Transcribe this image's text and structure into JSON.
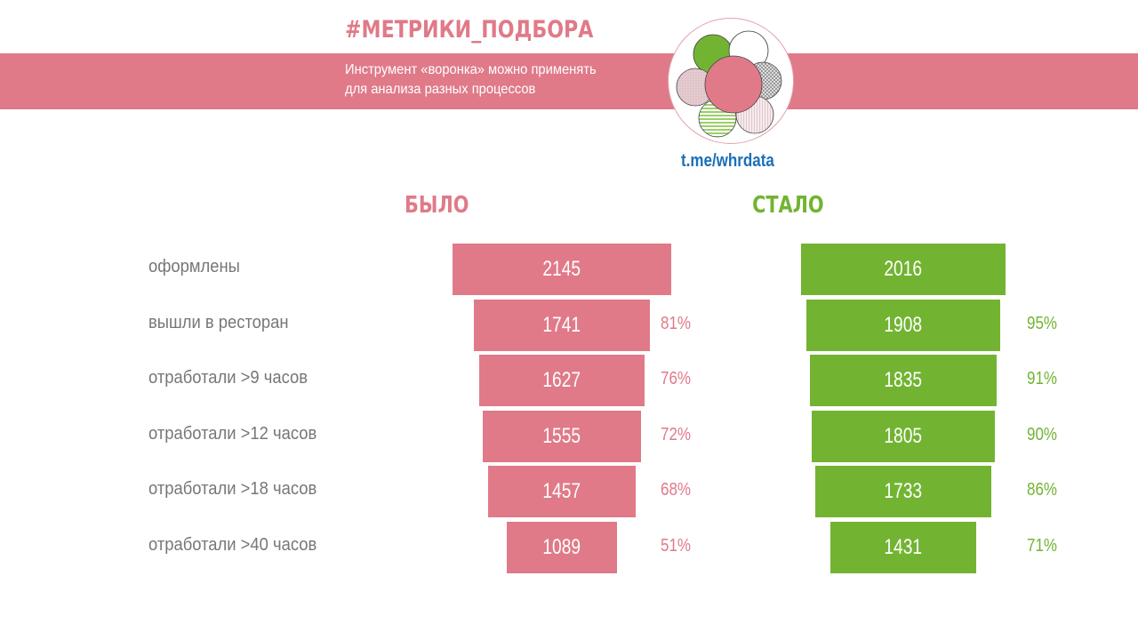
{
  "header": {
    "title": "#МЕТРИКИ_ПОДБОРА",
    "subtitle_line1": "Инструмент «воронка» можно применять",
    "subtitle_line2": "для анализа разных процессов",
    "link": "t.me/whrdata",
    "logo_icon": "flower-circles-logo"
  },
  "colors": {
    "pink": "#E07A88",
    "green": "#72B432",
    "link": "#1B6FB8",
    "label": "#777777"
  },
  "chart_data": {
    "type": "funnel",
    "categories": [
      "оформлены",
      "вышли в ресторан",
      "отработали >9 часов",
      "отработали >12 часов",
      "отработали >18 часов",
      "отработали >40 часов"
    ],
    "series": [
      {
        "name": "БЫЛО",
        "color": "#E07A88",
        "values": [
          2145,
          1741,
          1627,
          1555,
          1457,
          1089
        ],
        "percent_labels": [
          "",
          "81%",
          "76%",
          "72%",
          "68%",
          "51%"
        ]
      },
      {
        "name": "СТАЛО",
        "color": "#72B432",
        "values": [
          2016,
          1908,
          1835,
          1805,
          1733,
          1431
        ],
        "percent_labels": [
          "",
          "95%",
          "91%",
          "90%",
          "86%",
          "71%"
        ]
      }
    ]
  }
}
